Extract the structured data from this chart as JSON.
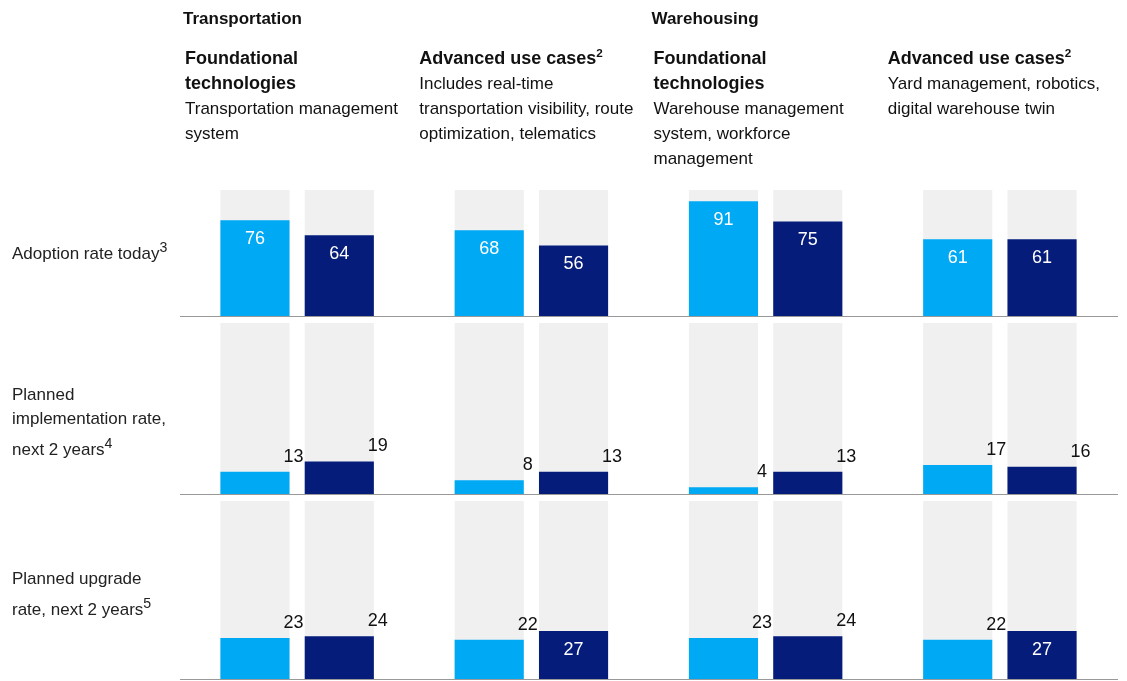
{
  "chart_data": [
    {
      "type": "bar",
      "title": "Adoption rate today$^{3}$",
      "categories": [
        "Foundational technologies",
        "Advanced use cases$^{2}$",
        "Foundational technologies",
        "Advanced use cases$^{2}$"
      ],
      "annotations": [
        "Transportation",
        "Warehousing",
        "Transportation management system",
        "Includes real-time transportation visibility, route optimization, telematics",
        "Warehouse management system, workforce management",
        "Yard management, robotics, digital warehouse twin"
      ],
      "series": [
        {
          "color": "#00a9f4",
          "values": [
            76,
            68,
            91,
            61
          ]
        },
        {
          "color": "#051c7b",
          "values": [
            64,
            56,
            75,
            61
          ]
        }
      ],
      "ylim": [
        0,
        100
      ],
      "tick_labels": "x",
      "data_labels": true,
      "grid": false,
      "legend": false
    },
    {
      "type": "bar",
      "title": "Planned implementation rate, next 2 years$^{4}$",
      "categories": [
        null,
        null,
        null,
        null
      ],
      "series": [
        {
          "color": "#00a9f4",
          "values": [
            13,
            8,
            4,
            17
          ]
        },
        {
          "color": "#051c7b",
          "values": [
            19,
            13,
            13,
            16
          ]
        }
      ],
      "ylim": [
        0,
        100
      ],
      "tick_labels": false,
      "data_labels": true,
      "grid": false,
      "legend": false
    },
    {
      "type": "bar",
      "title": "Planned upgrade rate, next 2 years$^{5}$",
      "categories": [
        null,
        null,
        null,
        null
      ],
      "series": [
        {
          "color": "#00a9f4",
          "values": [
            23,
            22,
            23,
            22
          ]
        },
        {
          "color": "#051c7b",
          "values": [
            24,
            27,
            24,
            27
          ]
        }
      ],
      "ylim": [
        0,
        100
      ],
      "tick_labels": false,
      "data_labels": true,
      "grid": false,
      "legend": false
    }
  ]
}
